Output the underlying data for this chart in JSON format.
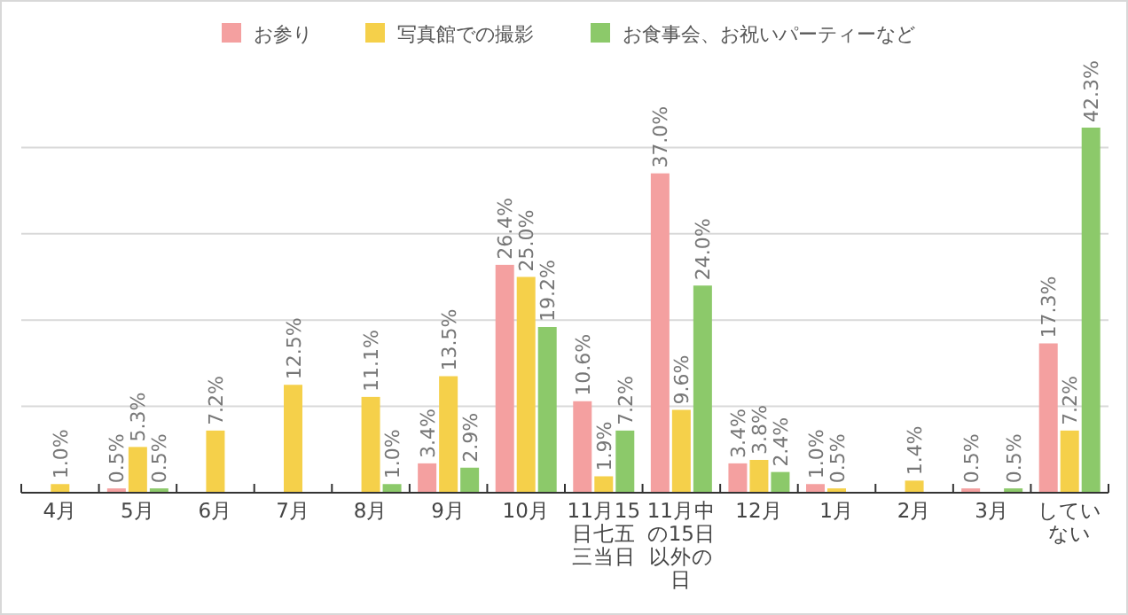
{
  "chart_data": {
    "type": "bar",
    "categories": [
      "4月",
      "5月",
      "6月",
      "7月",
      "8月",
      "9月",
      "10月",
      "11月15日七五三当日",
      "11月中の15日以外の日",
      "12月",
      "1月",
      "2月",
      "3月",
      "していない"
    ],
    "series": [
      {
        "name": "お参り",
        "color": "#f4a0a0",
        "values": [
          null,
          0.5,
          null,
          null,
          null,
          3.4,
          26.4,
          10.6,
          37.0,
          3.4,
          1.0,
          null,
          0.5,
          17.3
        ],
        "value_labels": [
          null,
          "0.5%",
          null,
          null,
          null,
          "3.4%",
          "26.4%",
          "10.6%",
          "37.0%",
          "3.4%",
          "1.0%",
          null,
          "0.5%",
          "17.3%"
        ]
      },
      {
        "name": "写真館での撮影",
        "color": "#f5d04a",
        "values": [
          1.0,
          5.3,
          7.2,
          12.5,
          11.1,
          13.5,
          25.0,
          1.9,
          9.6,
          3.8,
          0.5,
          1.4,
          null,
          7.2
        ],
        "value_labels": [
          "1.0%",
          "5.3%",
          "7.2%",
          "12.5%",
          "11.1%",
          "13.5%",
          "25.0%",
          "1.9%",
          "9.6%",
          "3.8%",
          "0.5%",
          "1.4%",
          null,
          "7.2%"
        ]
      },
      {
        "name": "お食事会、お祝いパーティーなど",
        "color": "#8cc96a",
        "values": [
          null,
          0.5,
          null,
          null,
          1.0,
          2.9,
          19.2,
          7.2,
          24.0,
          2.4,
          null,
          null,
          0.5,
          42.3
        ],
        "value_labels": [
          null,
          "0.5%",
          null,
          null,
          "1.0%",
          "2.9%",
          "19.2%",
          "7.2%",
          "24.0%",
          "2.4%",
          null,
          null,
          "0.5%",
          "42.3%"
        ]
      }
    ],
    "yticks": [
      {
        "value": 10,
        "label": null
      },
      {
        "value": 20,
        "label": null
      },
      {
        "value": 30,
        "label": null
      },
      {
        "value": 40,
        "label": null
      }
    ],
    "tick_labels": "x",
    "grid": "y",
    "legend": "top"
  }
}
